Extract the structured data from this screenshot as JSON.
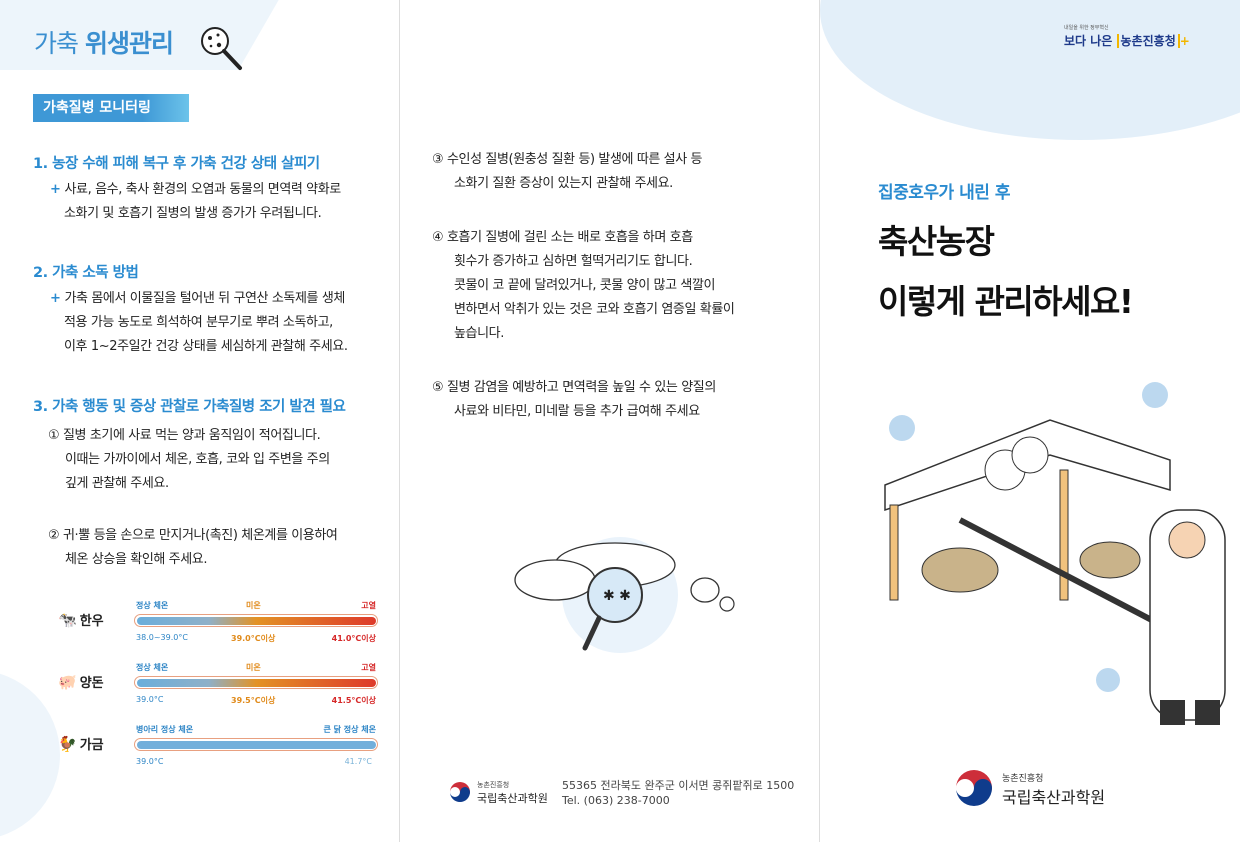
{
  "left": {
    "title_light": "가축",
    "title_bold": "위생관리",
    "badge": "가축질병 모니터링",
    "s1": {
      "heading": "1. 농장 수해 피해 복구 후 가축 건강 상태 살피기",
      "bullet": "+",
      "lines": [
        "사료, 음수, 축사 환경의 오염과 동물의 면역력 약화로",
        "소화기 및 호흡기 질병의 발생 증가가 우려됩니다."
      ]
    },
    "s2": {
      "heading": "2. 가축 소독 방법",
      "bullet": "+",
      "lines": [
        "가축 몸에서 이물질을 털어낸 뒤 구연산 소독제를 생체",
        "적용 가능 농도로 희석하여 분무기로 뿌려 소독하고,",
        "이후 1~2주일간 건강 상태를 세심하게 관찰해 주세요."
      ]
    },
    "s3": {
      "heading": "3. 가축 행동 및 증상 관찰로 가축질병 조기 발견 필요",
      "items": [
        {
          "lines": [
            "① 질병 초기에 사료 먹는 양과 움직임이 적어집니다.",
            "이때는 가까이에서 체온, 호흡, 코와 입 주변을 주의",
            "깊게 관찰해 주세요."
          ]
        },
        {
          "lines": [
            "② 귀·뿔 등을 손으로 만지거나(촉진) 체온계를 이용하여",
            "체온 상승을 확인해 주세요."
          ]
        }
      ]
    },
    "temps": [
      {
        "animal": "한우",
        "icon": "cow-icon",
        "top": [
          "정상 체온",
          "미온",
          "고열"
        ],
        "bottom": [
          "38.0~39.0°C",
          "39.0°C이상",
          "41.0°C이상"
        ]
      },
      {
        "animal": "양돈",
        "icon": "pig-icon",
        "top": [
          "정상 체온",
          "미온",
          "고열"
        ],
        "bottom": [
          "39.0°C",
          "39.5°C이상",
          "41.5°C이상"
        ]
      },
      {
        "animal": "가금",
        "icon": "chicken-icon",
        "top": [
          "병아리 정상 체온",
          "큰 닭 정상 체온"
        ],
        "bottom": [
          "39.0°C",
          "41.7°C"
        ]
      }
    ]
  },
  "middle": {
    "items": [
      {
        "lines": [
          "③ 수인성 질병(원충성 질환 등) 발생에 따른 설사 등",
          "소화기 질환 증상이 있는지 관찰해 주세요."
        ]
      },
      {
        "lines": [
          "④ 호흡기 질병에 걸린 소는 배로 호흡을 하며 호흡",
          "횟수가 증가하고 심하면 헐떡거리기도 합니다.",
          "콧물이 코 끝에 달려있거나, 콧물 양이 많고 색깔이",
          "변하면서 악취가 있는 것은 코와 호흡기 염증일 확률이",
          "높습니다."
        ]
      },
      {
        "lines": [
          "⑤ 질병 감염을 예방하고 면역력을 높일 수 있는 양질의",
          "사료와 비타민, 미네랄 등을 추가 급여해 주세요"
        ]
      }
    ],
    "footer": {
      "org_small": "농촌진흥청",
      "org": "국립축산과학원",
      "address": "55365 전라북도 완주군 이서면 콩쥐팥쥐로 1500",
      "tel": "Tel. (063) 238-7000"
    }
  },
  "right": {
    "slogan_small": "내일을 위한 정부혁신",
    "slogan": "보다 나은",
    "slogan_brand": "농촌진흥청",
    "subtitle": "집중호우가 내린 후",
    "title_lines": [
      "축산농장",
      "이렇게 관리하세요!"
    ],
    "footer": {
      "org_small": "농촌진흥청",
      "org": "국립축산과학원"
    }
  },
  "colors": {
    "accent": "#2a8bd0",
    "normal": "#5ea8d8",
    "mild": "#e08a1a",
    "fever": "#d62828"
  }
}
